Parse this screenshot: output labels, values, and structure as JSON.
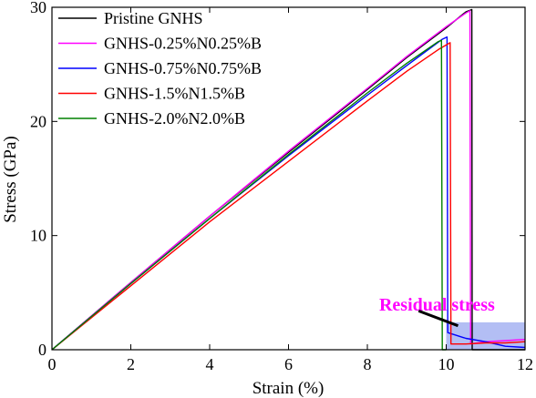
{
  "chart_data": {
    "type": "line",
    "xlabel": "Strain (%)",
    "ylabel": "Stress (GPa)",
    "xlim": [
      0,
      12
    ],
    "ylim": [
      0,
      30
    ],
    "xticks": [
      0,
      2,
      4,
      6,
      8,
      10,
      12
    ],
    "yticks": [
      0,
      10,
      20,
      30
    ],
    "grid": false,
    "legend_position": "top-left",
    "series": [
      {
        "name": "Pristine GNHS",
        "color": "#000000",
        "x": [
          0,
          2,
          4,
          6,
          8,
          9,
          10,
          10.5,
          10.65,
          10.66,
          11,
          12
        ],
        "y": [
          0,
          5.9,
          11.7,
          17.3,
          22.8,
          25.6,
          28.2,
          29.6,
          29.8,
          0,
          0,
          0
        ]
      },
      {
        "name": "GNHS-0.25%N0.25%B",
        "color": "#ff00ff",
        "x": [
          0,
          2,
          4,
          6,
          8,
          9,
          10,
          10.5,
          10.6,
          10.62,
          11,
          11.5,
          12
        ],
        "y": [
          0,
          5.9,
          11.7,
          17.4,
          22.9,
          25.7,
          28.3,
          29.5,
          29.7,
          0.5,
          0.7,
          0.8,
          0.9
        ]
      },
      {
        "name": "GNHS-0.75%N0.75%B",
        "color": "#0000ff",
        "x": [
          0,
          2,
          4,
          6,
          8,
          9,
          9.9,
          10.02,
          10.04,
          10.5,
          11,
          11.5,
          12
        ],
        "y": [
          0,
          5.8,
          11.5,
          17.0,
          22.3,
          24.9,
          27.2,
          27.4,
          1.5,
          1.0,
          0.7,
          0.3,
          0.2
        ]
      },
      {
        "name": "GNHS-1.5%N1.5%B",
        "color": "#ff0000",
        "x": [
          0,
          2,
          4,
          6,
          8,
          9,
          9.8,
          10.1,
          10.12,
          10.5,
          11,
          11.5,
          12
        ],
        "y": [
          0,
          5.6,
          11.2,
          16.5,
          21.8,
          24.4,
          26.3,
          26.9,
          0.5,
          0.5,
          0.6,
          0.6,
          0.7
        ]
      },
      {
        "name": "GNHS-2.0%N2.0%B",
        "color": "#008000",
        "x": [
          0,
          2,
          4,
          6,
          8,
          9,
          9.8,
          9.88,
          9.9,
          10.0
        ],
        "y": [
          0,
          5.8,
          11.5,
          17.1,
          22.5,
          25.1,
          27.0,
          27.1,
          0,
          0
        ]
      }
    ],
    "annotations": [
      {
        "text": "Residual stress",
        "color": "#ff00ff",
        "x": 8.3,
        "y": 4.0
      }
    ],
    "highlight_region": {
      "x": [
        10.0,
        12.0
      ],
      "y": [
        0.0,
        2.4
      ],
      "color": "#9aa8f0"
    },
    "annotation_arrow": {
      "from": [
        9.3,
        3.4
      ],
      "to": [
        10.3,
        2.1
      ]
    }
  }
}
